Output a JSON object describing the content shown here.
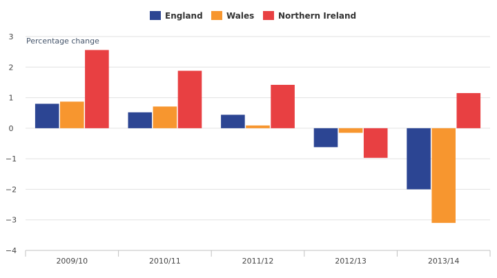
{
  "chart_data": {
    "type": "bar",
    "title": "",
    "xlabel": "",
    "ylabel": "Percentage change",
    "categories": [
      "2009/10",
      "2010/11",
      "2011/12",
      "2012/13",
      "2013/14"
    ],
    "series": [
      {
        "name": "England",
        "color": "#2c4593",
        "values": [
          0.8,
          0.52,
          0.44,
          -0.62,
          -2.0
        ]
      },
      {
        "name": "Wales",
        "color": "#f7962f",
        "values": [
          0.87,
          0.71,
          0.09,
          -0.15,
          -3.1
        ]
      },
      {
        "name": "Northern Ireland",
        "color": "#e84042",
        "values": [
          2.56,
          1.88,
          1.42,
          -0.97,
          1.15
        ]
      }
    ],
    "ylim": [
      -4,
      3
    ],
    "yticks": [
      "3",
      "2",
      "1",
      "0",
      "−1",
      "−2",
      "−3",
      "−4"
    ],
    "grid": true,
    "legend_position": "top"
  }
}
